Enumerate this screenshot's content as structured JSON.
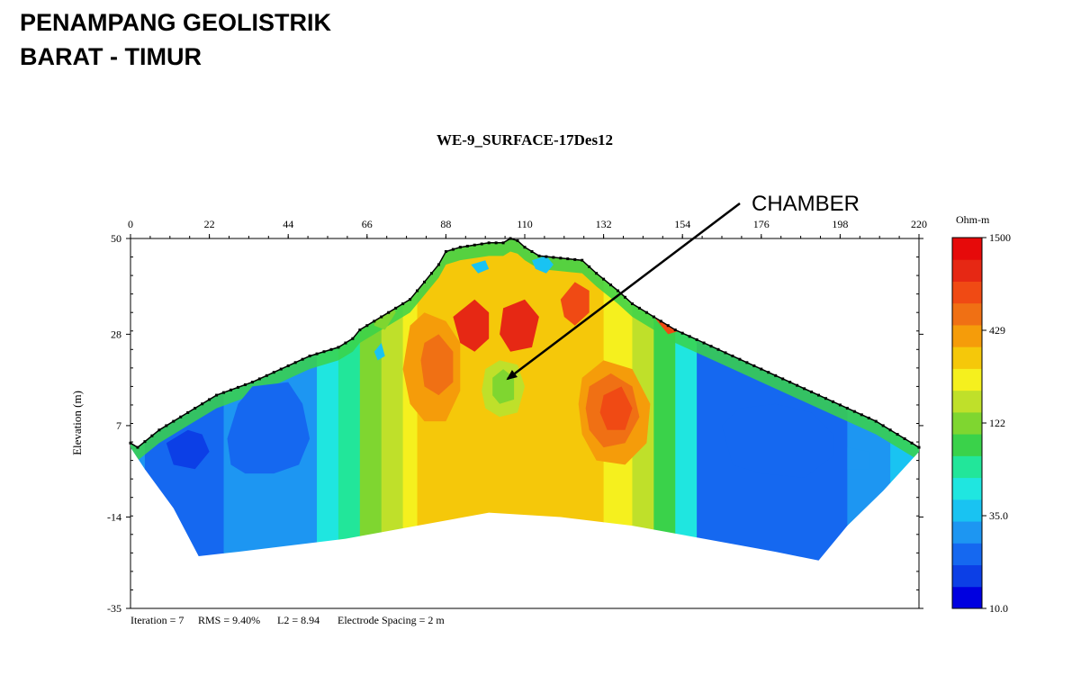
{
  "slide": {
    "title_line1": "PENAMPANG GEOLISTRIK",
    "title_line2": "BARAT - TIMUR"
  },
  "chart_data": {
    "type": "heatmap",
    "title": "WE-9_SURFACE-17Des12",
    "ylabel": "Elevation (m)",
    "xlim": [
      0,
      220
    ],
    "ylim": [
      -35,
      50
    ],
    "x_ticks": [
      "0",
      "22",
      "44",
      "66",
      "88",
      "110",
      "132",
      "154",
      "176",
      "198",
      "220"
    ],
    "y_ticks": [
      "50",
      "28",
      "7",
      "-14",
      "-35"
    ],
    "colorbar": {
      "unit": "Ohm-m",
      "labels": [
        "1500",
        "429",
        "122",
        "35.0",
        "10.0"
      ],
      "colors": [
        "#0000e0",
        "#0c3fe6",
        "#1568f0",
        "#1d96f2",
        "#19c3f2",
        "#1fe6e0",
        "#22e69a",
        "#3ad24a",
        "#7fd630",
        "#bfe02a",
        "#f5f01e",
        "#f5c80a",
        "#f59c0a",
        "#f07014",
        "#f04a14",
        "#e62814",
        "#e60a0a"
      ]
    },
    "annotation": "CHAMBER",
    "stats": {
      "iteration": "Iteration = 7",
      "rms": "RMS = 9.40%",
      "l2": "L2 = 8.94",
      "electrode_spacing": "Electrode Spacing = 2 m"
    },
    "surface_profile": [
      [
        0,
        3
      ],
      [
        2,
        2
      ],
      [
        8,
        6
      ],
      [
        16,
        10
      ],
      [
        24,
        14
      ],
      [
        34,
        17
      ],
      [
        42,
        20
      ],
      [
        50,
        23
      ],
      [
        58,
        25
      ],
      [
        62,
        27
      ],
      [
        64,
        29
      ],
      [
        72,
        33
      ],
      [
        78,
        36
      ],
      [
        82,
        40
      ],
      [
        86,
        44
      ],
      [
        88,
        47
      ],
      [
        92,
        48
      ],
      [
        96,
        48.5
      ],
      [
        100,
        49
      ],
      [
        104,
        49
      ],
      [
        106,
        50
      ],
      [
        108,
        49.5
      ],
      [
        110,
        48
      ],
      [
        114,
        46
      ],
      [
        120,
        45.5
      ],
      [
        126,
        45
      ],
      [
        130,
        42
      ],
      [
        136,
        38
      ],
      [
        140,
        35
      ],
      [
        146,
        32
      ],
      [
        152,
        29
      ],
      [
        160,
        26
      ],
      [
        168,
        23
      ],
      [
        176,
        20
      ],
      [
        184,
        17
      ],
      [
        192,
        14
      ],
      [
        200,
        11
      ],
      [
        208,
        8
      ],
      [
        214,
        5
      ],
      [
        220,
        2
      ]
    ],
    "data_bottom_profile": [
      [
        0,
        2
      ],
      [
        4,
        -3
      ],
      [
        12,
        -12
      ],
      [
        19,
        -23
      ],
      [
        30,
        -22
      ],
      [
        60,
        -19
      ],
      [
        80,
        -16
      ],
      [
        100,
        -13
      ],
      [
        120,
        -14
      ],
      [
        140,
        -16
      ],
      [
        160,
        -19
      ],
      [
        180,
        -22
      ],
      [
        192,
        -24
      ],
      [
        200,
        -16
      ],
      [
        210,
        -8
      ],
      [
        220,
        1
      ]
    ],
    "resistivity_zones": [
      {
        "class": 2,
        "poly": [
          [
            30,
            12
          ],
          [
            34,
            16
          ],
          [
            44,
            17
          ],
          [
            48,
            12
          ],
          [
            50,
            4
          ],
          [
            47,
            -2
          ],
          [
            40,
            -4
          ],
          [
            32,
            -4
          ],
          [
            28,
            -2
          ],
          [
            27,
            4
          ]
        ]
      },
      {
        "class": 1,
        "poly": [
          [
            10,
            3
          ],
          [
            16,
            6
          ],
          [
            20,
            5
          ],
          [
            22,
            1
          ],
          [
            18,
            -3
          ],
          [
            12,
            -2
          ]
        ]
      },
      {
        "class": 2,
        "poly": [
          [
            165,
            7
          ],
          [
            170,
            11
          ],
          [
            180,
            12
          ],
          [
            190,
            10
          ],
          [
            196,
            5
          ],
          [
            196,
            0
          ],
          [
            188,
            -5
          ],
          [
            176,
            -4
          ],
          [
            168,
            -2
          ]
        ]
      },
      {
        "class": 3,
        "poly": [
          [
            200,
            2
          ],
          [
            206,
            1
          ],
          [
            206,
            -3
          ],
          [
            200,
            -3
          ]
        ]
      },
      {
        "class": 8,
        "poly": [
          [
            68,
            34
          ],
          [
            72,
            36
          ],
          [
            74,
            33
          ],
          [
            71,
            29
          ],
          [
            68,
            30
          ]
        ]
      },
      {
        "class": 12,
        "poly": [
          [
            78,
            30
          ],
          [
            82,
            33
          ],
          [
            88,
            31
          ],
          [
            92,
            26
          ],
          [
            92,
            15
          ],
          [
            88,
            8
          ],
          [
            82,
            8
          ],
          [
            78,
            12
          ],
          [
            76,
            20
          ]
        ]
      },
      {
        "class": 13,
        "poly": [
          [
            82,
            26
          ],
          [
            86,
            28
          ],
          [
            90,
            24
          ],
          [
            90,
            17
          ],
          [
            86,
            14
          ],
          [
            82,
            16
          ],
          [
            81,
            22
          ]
        ]
      },
      {
        "class": 15,
        "poly": [
          [
            90,
            32
          ],
          [
            96,
            36
          ],
          [
            100,
            33
          ],
          [
            100,
            27
          ],
          [
            96,
            24
          ],
          [
            92,
            26
          ]
        ]
      },
      {
        "class": 15,
        "poly": [
          [
            104,
            34
          ],
          [
            110,
            36
          ],
          [
            114,
            32
          ],
          [
            112,
            25
          ],
          [
            106,
            24
          ],
          [
            103,
            28
          ]
        ]
      },
      {
        "class": 14,
        "poly": [
          [
            120,
            36
          ],
          [
            124,
            40
          ],
          [
            128,
            38
          ],
          [
            128,
            33
          ],
          [
            124,
            30
          ],
          [
            121,
            32
          ]
        ]
      },
      {
        "class": 12,
        "poly": [
          [
            126,
            18
          ],
          [
            132,
            22
          ],
          [
            140,
            20
          ],
          [
            145,
            12
          ],
          [
            144,
            3
          ],
          [
            138,
            -2
          ],
          [
            130,
            -1
          ],
          [
            126,
            5
          ],
          [
            125,
            12
          ]
        ]
      },
      {
        "class": 13,
        "poly": [
          [
            128,
            16
          ],
          [
            134,
            19
          ],
          [
            140,
            16
          ],
          [
            142,
            9
          ],
          [
            138,
            3
          ],
          [
            132,
            2
          ],
          [
            128,
            6
          ],
          [
            127,
            11
          ]
        ]
      },
      {
        "class": 14,
        "poly": [
          [
            132,
            14
          ],
          [
            137,
            16
          ],
          [
            140,
            11
          ],
          [
            138,
            6
          ],
          [
            133,
            6
          ],
          [
            131,
            10
          ]
        ]
      },
      {
        "class": 14,
        "poly": [
          [
            144,
            38
          ],
          [
            148,
            36
          ],
          [
            152,
            33
          ],
          [
            154,
            29
          ],
          [
            150,
            28
          ],
          [
            145,
            33
          ]
        ]
      },
      {
        "class": 9,
        "poly": [
          [
            99,
            20
          ],
          [
            103,
            22
          ],
          [
            108,
            21
          ],
          [
            110,
            16
          ],
          [
            108,
            10
          ],
          [
            103,
            9
          ],
          [
            99,
            11
          ],
          [
            98,
            15
          ]
        ]
      },
      {
        "class": 8,
        "poly": [
          [
            101,
            18
          ],
          [
            104,
            20
          ],
          [
            107,
            18
          ],
          [
            107,
            13
          ],
          [
            103,
            12
          ],
          [
            101,
            14
          ]
        ]
      },
      {
        "class": 4,
        "poly": [
          [
            68,
            24
          ],
          [
            70,
            26
          ],
          [
            71,
            23
          ],
          [
            69,
            22
          ]
        ]
      },
      {
        "class": 4,
        "poly": [
          [
            112,
            45
          ],
          [
            116,
            46
          ],
          [
            118,
            44
          ],
          [
            116,
            42
          ],
          [
            113,
            43
          ]
        ]
      },
      {
        "class": 4,
        "poly": [
          [
            95,
            44
          ],
          [
            99,
            45
          ],
          [
            100,
            43
          ],
          [
            97,
            42
          ]
        ]
      }
    ]
  }
}
